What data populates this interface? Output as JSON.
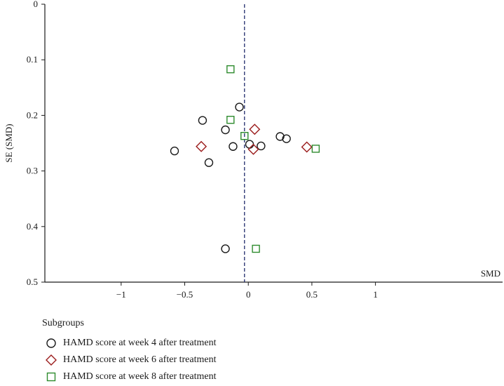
{
  "chart_data": {
    "type": "scatter",
    "title": "",
    "xlabel": "SMD",
    "ylabel": "SE (SMD)",
    "xlim": [
      -1.6,
      2.0
    ],
    "ylim": [
      0,
      0.5
    ],
    "y_reversed": true,
    "x_ticks": [
      -1,
      -0.5,
      0,
      0.5,
      1
    ],
    "x_tick_labels": [
      "−1",
      "−0.5",
      "0",
      "0.5",
      "1"
    ],
    "y_ticks": [
      0,
      0.1,
      0.2,
      0.3,
      0.4,
      0.5
    ],
    "y_tick_labels": [
      "0",
      "0.1",
      "0.2",
      "0.3",
      "0.4",
      "0.5"
    ],
    "reference_line_x": -0.03,
    "grid": false,
    "legend_position": "bottom-left",
    "legend_title": "Subgroups",
    "series": [
      {
        "name": "HAMD score at week 4 after treatment",
        "marker": "circle",
        "color": "#1a1a1a",
        "points": [
          {
            "x": -0.07,
            "y": 0.185
          },
          {
            "x": -0.36,
            "y": 0.209
          },
          {
            "x": -0.18,
            "y": 0.226
          },
          {
            "x": 0.25,
            "y": 0.238
          },
          {
            "x": 0.3,
            "y": 0.242
          },
          {
            "x": 0.01,
            "y": 0.252
          },
          {
            "x": 0.1,
            "y": 0.255
          },
          {
            "x": -0.12,
            "y": 0.256
          },
          {
            "x": -0.58,
            "y": 0.264
          },
          {
            "x": -0.31,
            "y": 0.285
          },
          {
            "x": -0.18,
            "y": 0.44
          }
        ]
      },
      {
        "name": "HAMD score at week 6 after treatment",
        "marker": "diamond",
        "color": "#9b1c1c",
        "points": [
          {
            "x": 0.05,
            "y": 0.225
          },
          {
            "x": -0.37,
            "y": 0.256
          },
          {
            "x": 0.46,
            "y": 0.257
          },
          {
            "x": 0.04,
            "y": 0.261
          }
        ]
      },
      {
        "name": "HAMD score at week 8 after treatment",
        "marker": "square",
        "color": "#2e8b2e",
        "points": [
          {
            "x": -0.14,
            "y": 0.117
          },
          {
            "x": -0.14,
            "y": 0.208
          },
          {
            "x": -0.03,
            "y": 0.237
          },
          {
            "x": 0.53,
            "y": 0.26
          },
          {
            "x": 0.06,
            "y": 0.44
          }
        ]
      }
    ]
  }
}
